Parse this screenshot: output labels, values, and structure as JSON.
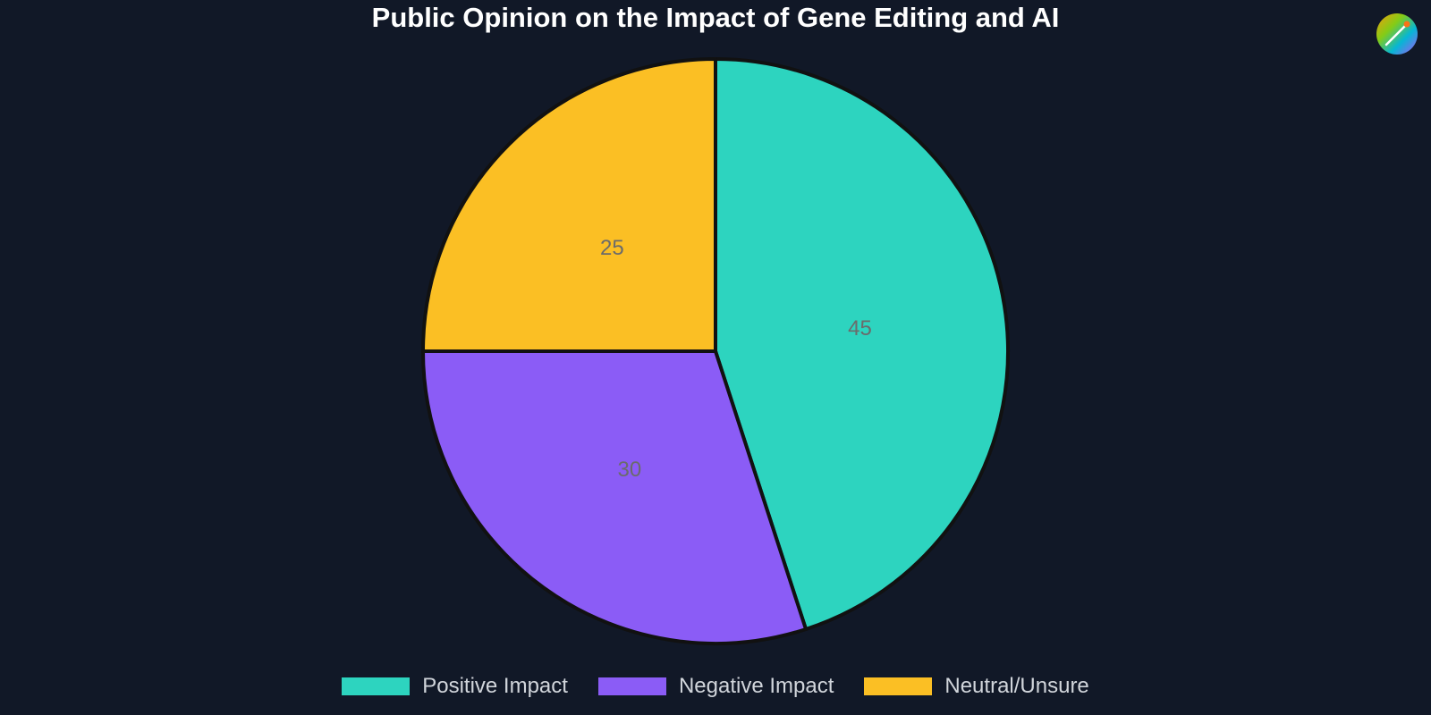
{
  "chart_data": {
    "type": "pie",
    "title": "Public Opinion on the Impact of Gene Editing and AI",
    "categories": [
      "Positive Impact",
      "Negative Impact",
      "Neutral/Unsure"
    ],
    "values": [
      45,
      30,
      25
    ],
    "colors": [
      "#2dd4bf",
      "#8b5cf6",
      "#fbbf24"
    ],
    "data_labels": [
      "45",
      "30",
      "25"
    ],
    "legend_placement": "bottom",
    "label_color": "#6b6b6b",
    "slice_border_color": "#111111"
  },
  "logo": {
    "icon": "palette-icon"
  }
}
